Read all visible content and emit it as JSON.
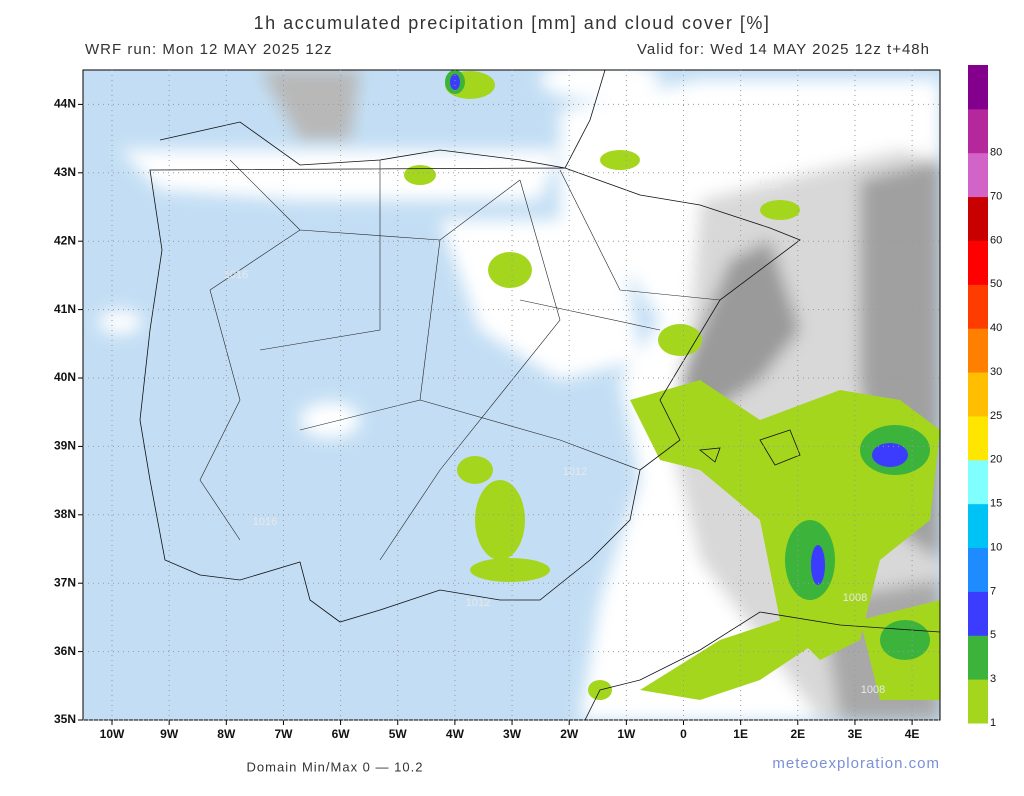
{
  "header": {
    "title": "1h accumulated precipitation [mm] and cloud cover [%]",
    "run": "WRF run: Mon 12 MAY 2025 12z",
    "valid": "Valid for: Wed 14 MAY 2025 12z  t+48h"
  },
  "map": {
    "lon_labels": [
      "10W",
      "9W",
      "8W",
      "7W",
      "6W",
      "5W",
      "4W",
      "3W",
      "2W",
      "1W",
      "0",
      "1E",
      "2E",
      "3E",
      "4E"
    ],
    "lat_labels": [
      "35N",
      "36N",
      "37N",
      "38N",
      "39N",
      "40N",
      "41N",
      "42N",
      "43N",
      "44N"
    ],
    "isobar_labels": [
      "1016",
      "1016",
      "1016",
      "1012",
      "1012",
      "1008",
      "1008"
    ]
  },
  "colorbar": {
    "levels": [
      1,
      3,
      5,
      7,
      10,
      15,
      20,
      25,
      30,
      40,
      50,
      60,
      70,
      80
    ],
    "colors": [
      "#a5d61e",
      "#3cb43c",
      "#3c3cff",
      "#1e8cff",
      "#00c3f5",
      "#80ffff",
      "#ffe600",
      "#ffbe00",
      "#ff8000",
      "#ff3c00",
      "#ff0000",
      "#c80000",
      "#d264c8",
      "#b4289b",
      "#82008c"
    ]
  },
  "footer": {
    "minmax": "Domain Min/Max 0 — 10.2",
    "credit": "meteoexploration.com"
  }
}
